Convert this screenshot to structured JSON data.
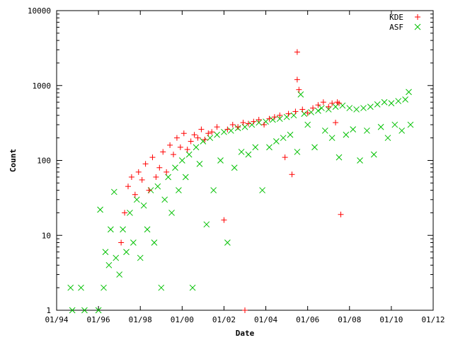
{
  "chart_data": {
    "type": "scatter",
    "xlabel": "Date",
    "ylabel": "Count",
    "y_scale": "log",
    "ylim": [
      1,
      10000
    ],
    "xlim": [
      "1994-01",
      "2012-01"
    ],
    "x_ticks": [
      "01/94",
      "01/96",
      "01/98",
      "01/00",
      "01/02",
      "01/04",
      "01/06",
      "01/08",
      "01/10",
      "01/12"
    ],
    "y_ticks": [
      "1",
      "10",
      "100",
      "1000",
      "10000"
    ],
    "grid": false,
    "legend_position": "top-right",
    "series": [
      {
        "name": "KDE",
        "marker": "plus",
        "color": "#ff0000",
        "points": [
          [
            "1997-02",
            8
          ],
          [
            "1997-04",
            20
          ],
          [
            "1997-06",
            45
          ],
          [
            "1997-08",
            60
          ],
          [
            "1997-10",
            35
          ],
          [
            "1997-12",
            70
          ],
          [
            "1998-02",
            55
          ],
          [
            "1998-04",
            90
          ],
          [
            "1998-06",
            40
          ],
          [
            "1998-08",
            110
          ],
          [
            "1998-10",
            60
          ],
          [
            "1998-12",
            80
          ],
          [
            "1999-02",
            130
          ],
          [
            "1999-04",
            70
          ],
          [
            "1999-06",
            160
          ],
          [
            "1999-08",
            120
          ],
          [
            "1999-10",
            200
          ],
          [
            "1999-12",
            150
          ],
          [
            "2000-02",
            230
          ],
          [
            "2000-04",
            140
          ],
          [
            "2000-06",
            180
          ],
          [
            "2000-08",
            220
          ],
          [
            "2000-10",
            200
          ],
          [
            "2000-12",
            260
          ],
          [
            "2001-02",
            190
          ],
          [
            "2001-04",
            230
          ],
          [
            "2001-06",
            240
          ],
          [
            "2001-09",
            280
          ],
          [
            "2002-01",
            16
          ],
          [
            "2002-03",
            260
          ],
          [
            "2002-06",
            300
          ],
          [
            "2002-09",
            280
          ],
          [
            "2002-12",
            320
          ],
          [
            "2003-01",
            1
          ],
          [
            "2003-03",
            310
          ],
          [
            "2003-06",
            330
          ],
          [
            "2003-09",
            350
          ],
          [
            "2003-12",
            300
          ],
          [
            "2004-03",
            360
          ],
          [
            "2004-06",
            380
          ],
          [
            "2004-09",
            400
          ],
          [
            "2004-12",
            110
          ],
          [
            "2005-02",
            420
          ],
          [
            "2005-04",
            65
          ],
          [
            "2005-06",
            450
          ],
          [
            "2005-07",
            2800
          ],
          [
            "2005-07",
            1200
          ],
          [
            "2005-08",
            880
          ],
          [
            "2005-10",
            480
          ],
          [
            "2006-01",
            430
          ],
          [
            "2006-04",
            500
          ],
          [
            "2006-07",
            550
          ],
          [
            "2006-10",
            600
          ],
          [
            "2007-01",
            520
          ],
          [
            "2007-03",
            580
          ],
          [
            "2007-05",
            320
          ],
          [
            "2007-06",
            600
          ],
          [
            "2007-07",
            580
          ],
          [
            "2007-08",
            19
          ]
        ]
      },
      {
        "name": "ASF",
        "marker": "cross",
        "color": "#00c000",
        "points": [
          [
            "1994-09",
            2
          ],
          [
            "1994-10",
            1
          ],
          [
            "1995-03",
            2
          ],
          [
            "1995-05",
            1
          ],
          [
            "1996-01",
            1
          ],
          [
            "1996-02",
            22
          ],
          [
            "1996-04",
            2
          ],
          [
            "1996-05",
            6
          ],
          [
            "1996-07",
            4
          ],
          [
            "1996-08",
            12
          ],
          [
            "1996-10",
            38
          ],
          [
            "1996-11",
            5
          ],
          [
            "1997-01",
            3
          ],
          [
            "1997-03",
            12
          ],
          [
            "1997-05",
            6
          ],
          [
            "1997-07",
            20
          ],
          [
            "1997-09",
            8
          ],
          [
            "1997-11",
            30
          ],
          [
            "1998-01",
            5
          ],
          [
            "1998-03",
            25
          ],
          [
            "1998-05",
            12
          ],
          [
            "1998-07",
            40
          ],
          [
            "1998-09",
            8
          ],
          [
            "1998-11",
            45
          ],
          [
            "1999-01",
            2
          ],
          [
            "1999-03",
            30
          ],
          [
            "1999-05",
            60
          ],
          [
            "1999-07",
            20
          ],
          [
            "1999-09",
            80
          ],
          [
            "1999-11",
            40
          ],
          [
            "2000-01",
            100
          ],
          [
            "2000-03",
            60
          ],
          [
            "2000-05",
            120
          ],
          [
            "2000-07",
            2
          ],
          [
            "2000-09",
            150
          ],
          [
            "2000-11",
            90
          ],
          [
            "2001-01",
            180
          ],
          [
            "2001-03",
            14
          ],
          [
            "2001-05",
            200
          ],
          [
            "2001-07",
            40
          ],
          [
            "2001-09",
            220
          ],
          [
            "2001-11",
            100
          ],
          [
            "2002-01",
            240
          ],
          [
            "2002-03",
            8
          ],
          [
            "2002-05",
            250
          ],
          [
            "2002-07",
            80
          ],
          [
            "2002-09",
            270
          ],
          [
            "2002-11",
            130
          ],
          [
            "2003-01",
            280
          ],
          [
            "2003-03",
            120
          ],
          [
            "2003-05",
            300
          ],
          [
            "2003-07",
            150
          ],
          [
            "2003-09",
            320
          ],
          [
            "2003-11",
            40
          ],
          [
            "2004-01",
            330
          ],
          [
            "2004-03",
            150
          ],
          [
            "2004-05",
            350
          ],
          [
            "2004-07",
            180
          ],
          [
            "2004-09",
            360
          ],
          [
            "2004-11",
            200
          ],
          [
            "2005-01",
            380
          ],
          [
            "2005-03",
            220
          ],
          [
            "2005-05",
            400
          ],
          [
            "2005-07",
            130
          ],
          [
            "2005-09",
            760
          ],
          [
            "2005-11",
            420
          ],
          [
            "2006-01",
            300
          ],
          [
            "2006-03",
            440
          ],
          [
            "2006-05",
            150
          ],
          [
            "2006-07",
            460
          ],
          [
            "2006-09",
            500
          ],
          [
            "2006-11",
            250
          ],
          [
            "2007-01",
            480
          ],
          [
            "2007-03",
            200
          ],
          [
            "2007-05",
            520
          ],
          [
            "2007-07",
            110
          ],
          [
            "2007-09",
            540
          ],
          [
            "2007-11",
            220
          ],
          [
            "2008-01",
            500
          ],
          [
            "2008-03",
            260
          ],
          [
            "2008-05",
            480
          ],
          [
            "2008-07",
            100
          ],
          [
            "2008-09",
            500
          ],
          [
            "2008-11",
            250
          ],
          [
            "2009-01",
            520
          ],
          [
            "2009-03",
            120
          ],
          [
            "2009-05",
            560
          ],
          [
            "2009-07",
            280
          ],
          [
            "2009-09",
            600
          ],
          [
            "2009-11",
            200
          ],
          [
            "2010-01",
            580
          ],
          [
            "2010-03",
            300
          ],
          [
            "2010-05",
            620
          ],
          [
            "2010-07",
            250
          ],
          [
            "2010-09",
            650
          ],
          [
            "2010-11",
            820
          ],
          [
            "2010-12",
            300
          ]
        ]
      }
    ]
  }
}
